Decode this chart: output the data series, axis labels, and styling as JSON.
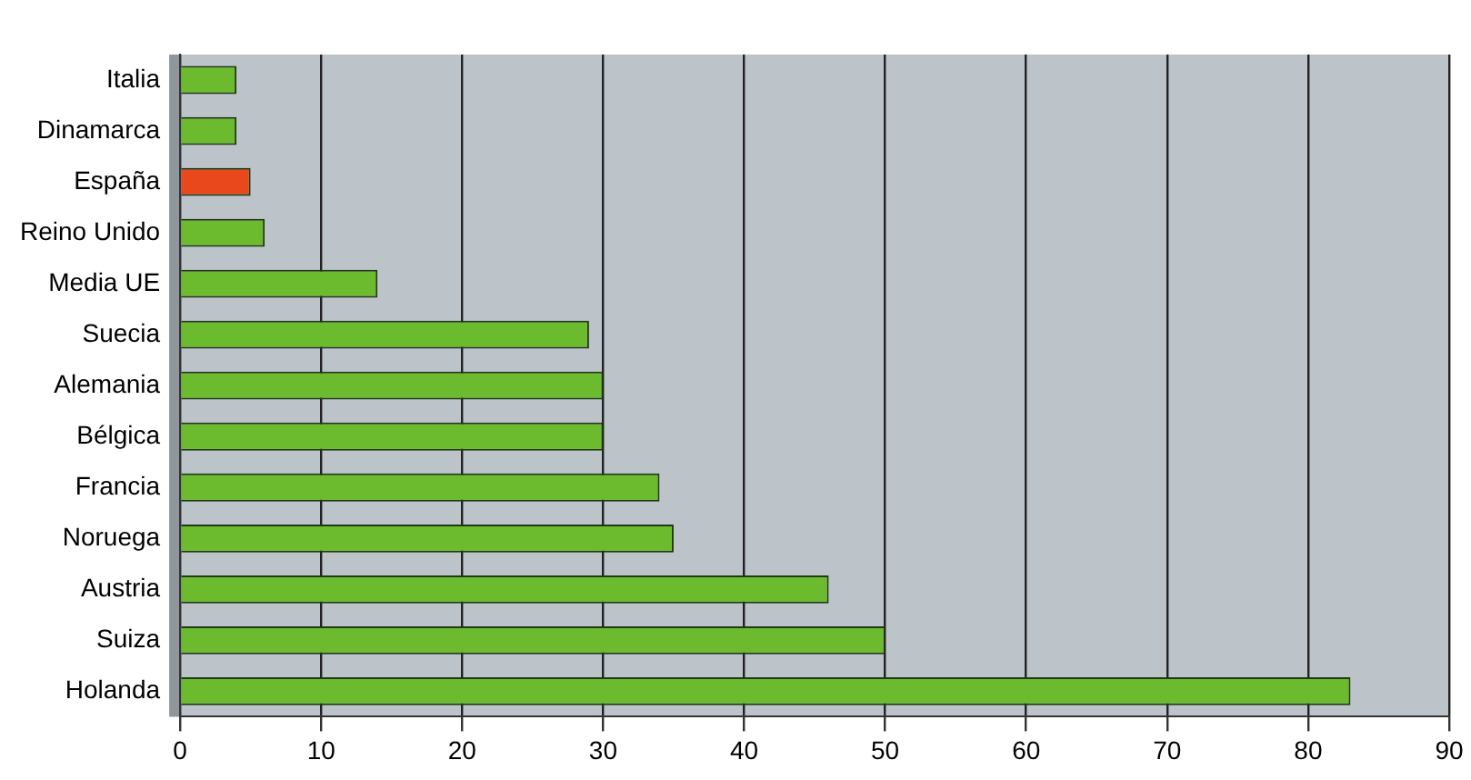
{
  "chart_data": {
    "type": "bar",
    "orientation": "horizontal",
    "categories": [
      "Italia",
      "Dinamarca",
      "España",
      "Reino Unido",
      "Media UE",
      "Suecia",
      "Alemania",
      "Bélgica",
      "Francia",
      "Noruega",
      "Austria",
      "Suiza",
      "Holanda"
    ],
    "values": [
      4,
      4,
      5,
      6,
      14,
      29,
      30,
      30,
      34,
      35,
      46,
      50,
      83
    ],
    "colors": [
      "#6cbb2f",
      "#6cbb2f",
      "#e9481c",
      "#6cbb2f",
      "#6cbb2f",
      "#6cbb2f",
      "#6cbb2f",
      "#6cbb2f",
      "#6cbb2f",
      "#6cbb2f",
      "#6cbb2f",
      "#6cbb2f",
      "#6cbb2f"
    ],
    "xlim": [
      0,
      90
    ],
    "xticks": [
      0,
      10,
      20,
      30,
      40,
      50,
      60,
      70,
      80,
      90
    ],
    "grid": "x",
    "legend": false
  }
}
